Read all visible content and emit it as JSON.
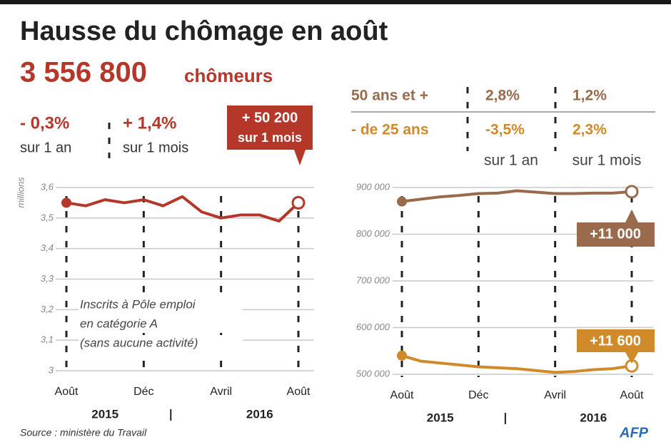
{
  "title": "Hausse du chômage en août",
  "headline": {
    "number": "3 556 800",
    "unit": "chômeurs"
  },
  "stats": [
    {
      "label": "- 0,3%",
      "note": "sur 1 an"
    },
    {
      "label": "+ 1,4%",
      "note": "sur 1 mois"
    }
  ],
  "source": "Source : ministère du Travail",
  "credit": "AFP",
  "chart_data": [
    {
      "type": "line",
      "y_label": "millions",
      "categories": [
        "Août",
        null,
        null,
        null,
        "Déc",
        null,
        null,
        null,
        "Avril",
        null,
        null,
        null,
        "Août"
      ],
      "year_labels": [
        "2015",
        "2016"
      ],
      "series": [
        {
          "color": "#b5372a",
          "values": [
            3.55,
            3.54,
            3.56,
            3.55,
            3.56,
            3.54,
            3.57,
            3.52,
            3.5,
            3.51,
            3.51,
            3.49,
            3.55
          ]
        }
      ],
      "ylim": [
        3,
        3.6
      ],
      "yticks": [
        {
          "value": 3,
          "label": "3"
        },
        {
          "value": 3.1,
          "label": "3,1"
        },
        {
          "value": 3.2,
          "label": "3,2"
        },
        {
          "value": 3.3,
          "label": "3,3"
        },
        {
          "value": 3.4,
          "label": "3,4"
        },
        {
          "value": 3.5,
          "label": "3,5"
        },
        {
          "value": 3.6,
          "label": "3,6"
        }
      ],
      "grid": true,
      "annotation": [
        "Inscrits à Pôle emploi",
        "en catégorie A",
        "(sans aucune activité)"
      ],
      "callout": {
        "value": 50200,
        "label": "+ 50 200",
        "note": "sur 1 mois"
      }
    },
    {
      "type": "line",
      "categories": [
        "Août",
        null,
        null,
        null,
        "Déc",
        null,
        null,
        null,
        "Avril",
        null,
        null,
        null,
        "Août"
      ],
      "year_labels": [
        "2015",
        "2016"
      ],
      "change_columns": [
        "sur 1 an",
        "sur 1 mois"
      ],
      "series": [
        {
          "name": "50 ans et +",
          "color": "#9a6a4c",
          "changes": [
            "2,8%",
            "1,2%"
          ],
          "values": [
            870000,
            875000,
            880000,
            883000,
            887000,
            888000,
            893000,
            890000,
            887000,
            887000,
            888000,
            888000,
            891000
          ],
          "callout": {
            "value": 11000,
            "label": "+11 000"
          }
        },
        {
          "name": "- de 25 ans",
          "color": "#d08a2a",
          "changes": [
            "-3,5%",
            "2,3%"
          ],
          "values": [
            540000,
            528000,
            524000,
            520000,
            516000,
            514000,
            512000,
            508000,
            504000,
            506000,
            510000,
            512000,
            518000
          ],
          "callout": {
            "value": 11600,
            "label": "+11 600"
          }
        }
      ],
      "ylim": [
        500000,
        900000
      ],
      "yticks": [
        {
          "value": 500000,
          "label": "500 000"
        },
        {
          "value": 600000,
          "label": "600 000"
        },
        {
          "value": 700000,
          "label": "700 000"
        },
        {
          "value": 800000,
          "label": "800 000"
        },
        {
          "value": 900000,
          "label": "900 000"
        }
      ],
      "grid": true
    }
  ]
}
